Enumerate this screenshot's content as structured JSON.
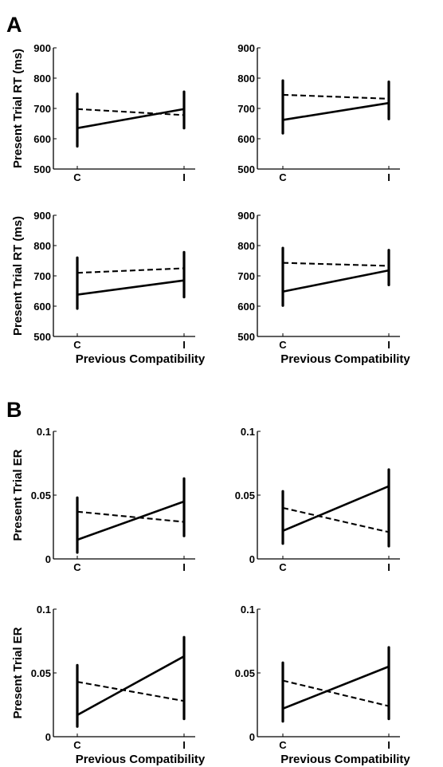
{
  "panels": [
    {
      "letter": "A"
    },
    {
      "letter": "B"
    }
  ],
  "chart_data": [
    {
      "type": "line",
      "panel": "A",
      "position": "top-left",
      "categories": [
        "C",
        "I"
      ],
      "ylabel": "Present Trial RT (ms)",
      "xlabel": "",
      "ylim": [
        500,
        900
      ],
      "yticks": [
        500,
        600,
        700,
        800,
        900
      ],
      "series": [
        {
          "style": "solid",
          "values": [
            635,
            698
          ],
          "err": [
            [
              575,
              748
            ],
            [
              635,
              755
            ]
          ]
        },
        {
          "style": "dashed",
          "values": [
            698,
            678
          ],
          "err": [
            [
              575,
              748
            ],
            [
              635,
              755
            ]
          ]
        }
      ]
    },
    {
      "type": "line",
      "panel": "A",
      "position": "top-right",
      "categories": [
        "C",
        "I"
      ],
      "ylabel": "",
      "xlabel": "",
      "ylim": [
        500,
        900
      ],
      "yticks": [
        500,
        600,
        700,
        800,
        900
      ],
      "series": [
        {
          "style": "solid",
          "values": [
            662,
            718
          ],
          "err": [
            [
              618,
              792
            ],
            [
              665,
              788
            ]
          ]
        },
        {
          "style": "dashed",
          "values": [
            745,
            732
          ],
          "err": [
            [
              618,
              792
            ],
            [
              665,
              788
            ]
          ]
        }
      ]
    },
    {
      "type": "line",
      "panel": "A",
      "position": "bottom-left",
      "categories": [
        "C",
        "I"
      ],
      "ylabel": "Present Trial RT (ms)",
      "xlabel": "Previous Compatibility",
      "ylim": [
        500,
        900
      ],
      "yticks": [
        500,
        600,
        700,
        800,
        900
      ],
      "series": [
        {
          "style": "solid",
          "values": [
            638,
            685
          ],
          "err": [
            [
              592,
              760
            ],
            [
              630,
              778
            ]
          ]
        },
        {
          "style": "dashed",
          "values": [
            710,
            725
          ],
          "err": [
            [
              592,
              760
            ],
            [
              630,
              778
            ]
          ]
        }
      ]
    },
    {
      "type": "line",
      "panel": "A",
      "position": "bottom-right",
      "categories": [
        "C",
        "I"
      ],
      "ylabel": "",
      "xlabel": "Previous Compatibility",
      "ylim": [
        500,
        900
      ],
      "yticks": [
        500,
        600,
        700,
        800,
        900
      ],
      "series": [
        {
          "style": "solid",
          "values": [
            648,
            718
          ],
          "err": [
            [
              602,
              792
            ],
            [
              670,
              785
            ]
          ]
        },
        {
          "style": "dashed",
          "values": [
            743,
            733
          ],
          "err": [
            [
              602,
              792
            ],
            [
              670,
              785
            ]
          ]
        }
      ]
    },
    {
      "type": "line",
      "panel": "B",
      "position": "top-left",
      "categories": [
        "C",
        "I"
      ],
      "ylabel": "Present Trial ER",
      "xlabel": "",
      "ylim": [
        0,
        0.1
      ],
      "yticks": [
        0,
        0.05,
        0.1
      ],
      "ytick_labels": [
        "0",
        "0.05",
        "0.1"
      ],
      "series": [
        {
          "style": "solid",
          "values": [
            0.015,
            0.045
          ],
          "err": [
            [
              0.005,
              0.048
            ],
            [
              0.018,
              0.063
            ]
          ]
        },
        {
          "style": "dashed",
          "values": [
            0.037,
            0.029
          ],
          "err": [
            [
              0.005,
              0.048
            ],
            [
              0.018,
              0.063
            ]
          ]
        }
      ]
    },
    {
      "type": "line",
      "panel": "B",
      "position": "top-right",
      "categories": [
        "C",
        "I"
      ],
      "ylabel": "",
      "xlabel": "",
      "ylim": [
        0,
        0.1
      ],
      "yticks": [
        0,
        0.05,
        0.1
      ],
      "ytick_labels": [
        "0",
        "0.05",
        "0.1"
      ],
      "series": [
        {
          "style": "solid",
          "values": [
            0.022,
            0.057
          ],
          "err": [
            [
              0.012,
              0.053
            ],
            [
              0.01,
              0.07
            ]
          ]
        },
        {
          "style": "dashed",
          "values": [
            0.04,
            0.021
          ],
          "err": [
            [
              0.012,
              0.053
            ],
            [
              0.01,
              0.07
            ]
          ]
        }
      ]
    },
    {
      "type": "line",
      "panel": "B",
      "position": "bottom-left",
      "categories": [
        "C",
        "I"
      ],
      "ylabel": "Present Trial ER",
      "xlabel": "Previous Compatibility",
      "ylim": [
        0,
        0.1
      ],
      "yticks": [
        0,
        0.05,
        0.1
      ],
      "ytick_labels": [
        "0",
        "0.05",
        "0.1"
      ],
      "series": [
        {
          "style": "solid",
          "values": [
            0.017,
            0.063
          ],
          "err": [
            [
              0.008,
              0.056
            ],
            [
              0.014,
              0.078
            ]
          ]
        },
        {
          "style": "dashed",
          "values": [
            0.043,
            0.028
          ],
          "err": [
            [
              0.008,
              0.056
            ],
            [
              0.014,
              0.078
            ]
          ]
        }
      ]
    },
    {
      "type": "line",
      "panel": "B",
      "position": "bottom-right",
      "categories": [
        "C",
        "I"
      ],
      "ylabel": "",
      "xlabel": "Previous Compatibility",
      "ylim": [
        0,
        0.1
      ],
      "yticks": [
        0,
        0.05,
        0.1
      ],
      "ytick_labels": [
        "0",
        "0.05",
        "0.1"
      ],
      "series": [
        {
          "style": "solid",
          "values": [
            0.022,
            0.055
          ],
          "err": [
            [
              0.012,
              0.058
            ],
            [
              0.014,
              0.07
            ]
          ]
        },
        {
          "style": "dashed",
          "values": [
            0.044,
            0.024
          ],
          "err": [
            [
              0.012,
              0.058
            ],
            [
              0.014,
              0.07
            ]
          ]
        }
      ]
    }
  ]
}
